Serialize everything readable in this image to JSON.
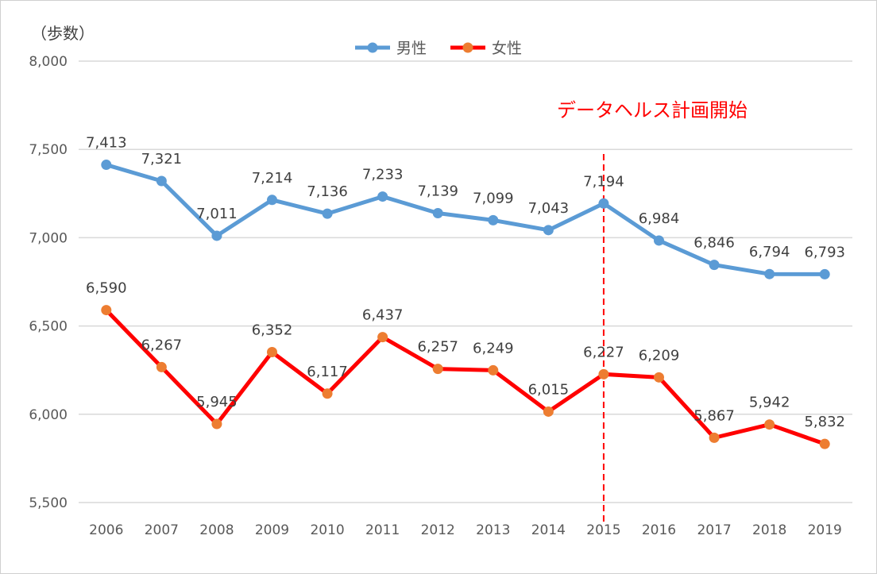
{
  "chart_data": {
    "type": "line",
    "y_unit_label": "（歩数）",
    "categories": [
      "2006",
      "2007",
      "2008",
      "2009",
      "2010",
      "2011",
      "2012",
      "2013",
      "2014",
      "2015",
      "2016",
      "2017",
      "2018",
      "2019"
    ],
    "series": [
      {
        "name": "男性",
        "color": "#5b9bd5",
        "values": [
          7413,
          7321,
          7011,
          7214,
          7136,
          7233,
          7139,
          7099,
          7043,
          7194,
          6984,
          6846,
          6794,
          6793
        ]
      },
      {
        "name": "女性",
        "color": "#ff0000",
        "marker_color": "#ed7d31",
        "values": [
          6590,
          6267,
          5945,
          6352,
          6117,
          6437,
          6257,
          6249,
          6015,
          6227,
          6209,
          5867,
          5942,
          5832
        ]
      }
    ],
    "ylim": [
      5500,
      8000
    ],
    "yticks": [
      "5,500",
      "6,000",
      "6,500",
      "7,000",
      "7,500",
      "8,000"
    ],
    "grid": true,
    "legend": "top-center",
    "annotation": {
      "text": "データヘルス計画開始",
      "at_category": "2015",
      "color": "#ff0000",
      "line_style": "dashed"
    }
  }
}
